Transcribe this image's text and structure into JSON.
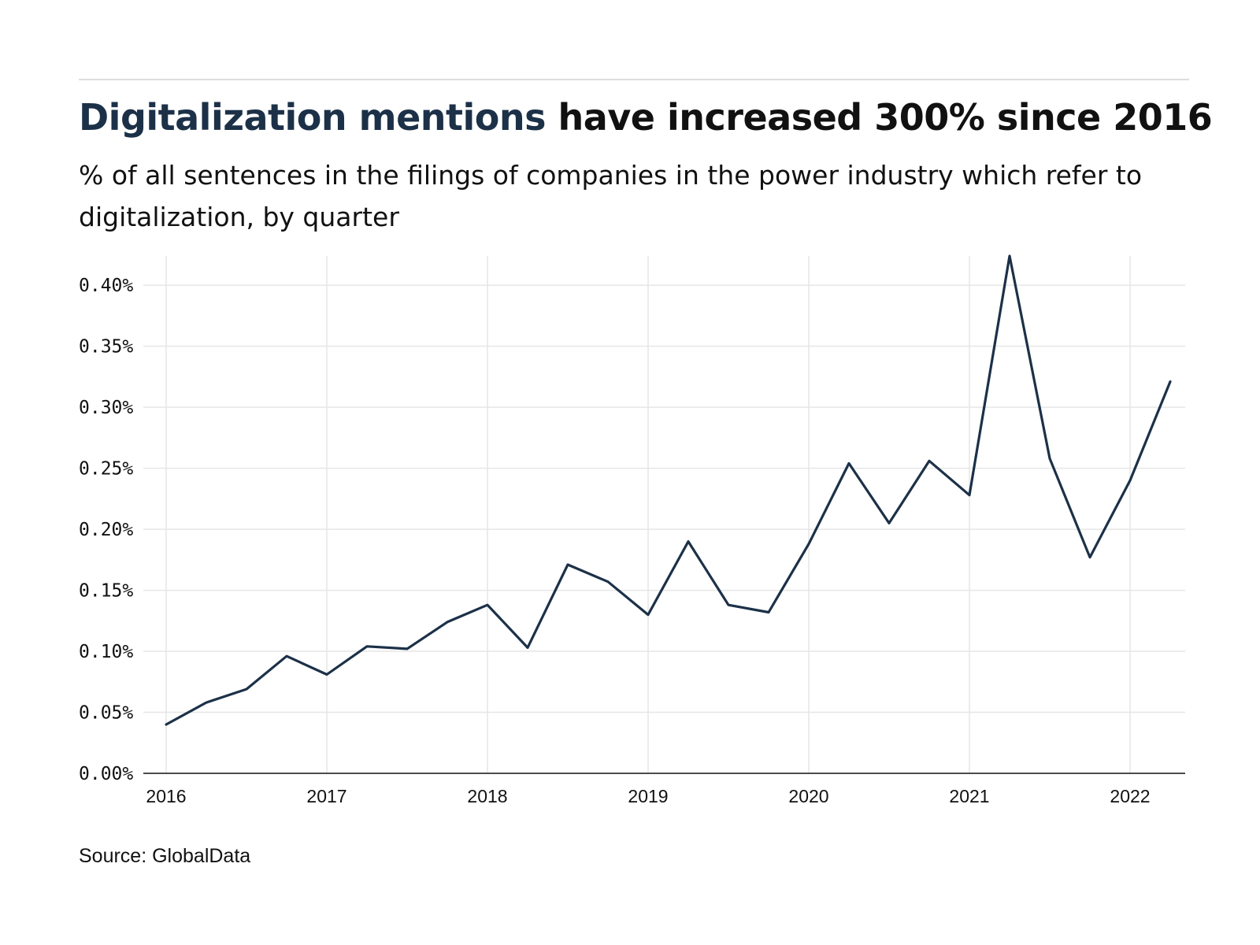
{
  "header": {
    "title_highlight": "Digitalization mentions",
    "title_rest": " have increased 300% since 2016",
    "subtitle": "% of all sentences in the filings of companies in the power industry which refer to digitalization, by quarter"
  },
  "footer": {
    "source": "Source: GlobalData"
  },
  "colors": {
    "line": "#1c3148",
    "highlight": "#1c3148",
    "grid": "#e6e6e6",
    "axis": "#111111"
  },
  "chart_data": {
    "type": "line",
    "title": "Digitalization mentions have increased 300% since 2016",
    "subtitle": "% of all sentences in the filings of companies in the power industry which refer to digitalization, by quarter",
    "xlabel": "",
    "ylabel": "",
    "x": [
      "2016 Q1",
      "2016 Q2",
      "2016 Q3",
      "2016 Q4",
      "2017 Q1",
      "2017 Q2",
      "2017 Q3",
      "2017 Q4",
      "2018 Q1",
      "2018 Q2",
      "2018 Q3",
      "2018 Q4",
      "2019 Q1",
      "2019 Q2",
      "2019 Q3",
      "2019 Q4",
      "2020 Q1",
      "2020 Q2",
      "2020 Q3",
      "2020 Q4",
      "2021 Q1",
      "2021 Q2",
      "2021 Q3",
      "2021 Q4",
      "2022 Q1",
      "2022 Q2"
    ],
    "series": [
      {
        "values": [
          0.04,
          0.058,
          0.069,
          0.096,
          0.081,
          0.104,
          0.102,
          0.124,
          0.138,
          0.103,
          0.171,
          0.157,
          0.13,
          0.19,
          0.138,
          0.132,
          0.188,
          0.254,
          0.205,
          0.256,
          0.228,
          0.424,
          0.258,
          0.177,
          0.24,
          0.321
        ]
      }
    ],
    "x_ticks": [
      "2016",
      "2017",
      "2018",
      "2019",
      "2020",
      "2021",
      "2022"
    ],
    "y_ticks": [
      0,
      0.05,
      0.1,
      0.15,
      0.2,
      0.25,
      0.3,
      0.35,
      0.4
    ],
    "y_tick_labels": [
      "0.00%",
      "0.05%",
      "0.10%",
      "0.15%",
      "0.20%",
      "0.25%",
      "0.30%",
      "0.35%",
      "0.40%"
    ],
    "ylim": [
      0,
      0.424
    ],
    "grid": true,
    "legend": "none"
  }
}
